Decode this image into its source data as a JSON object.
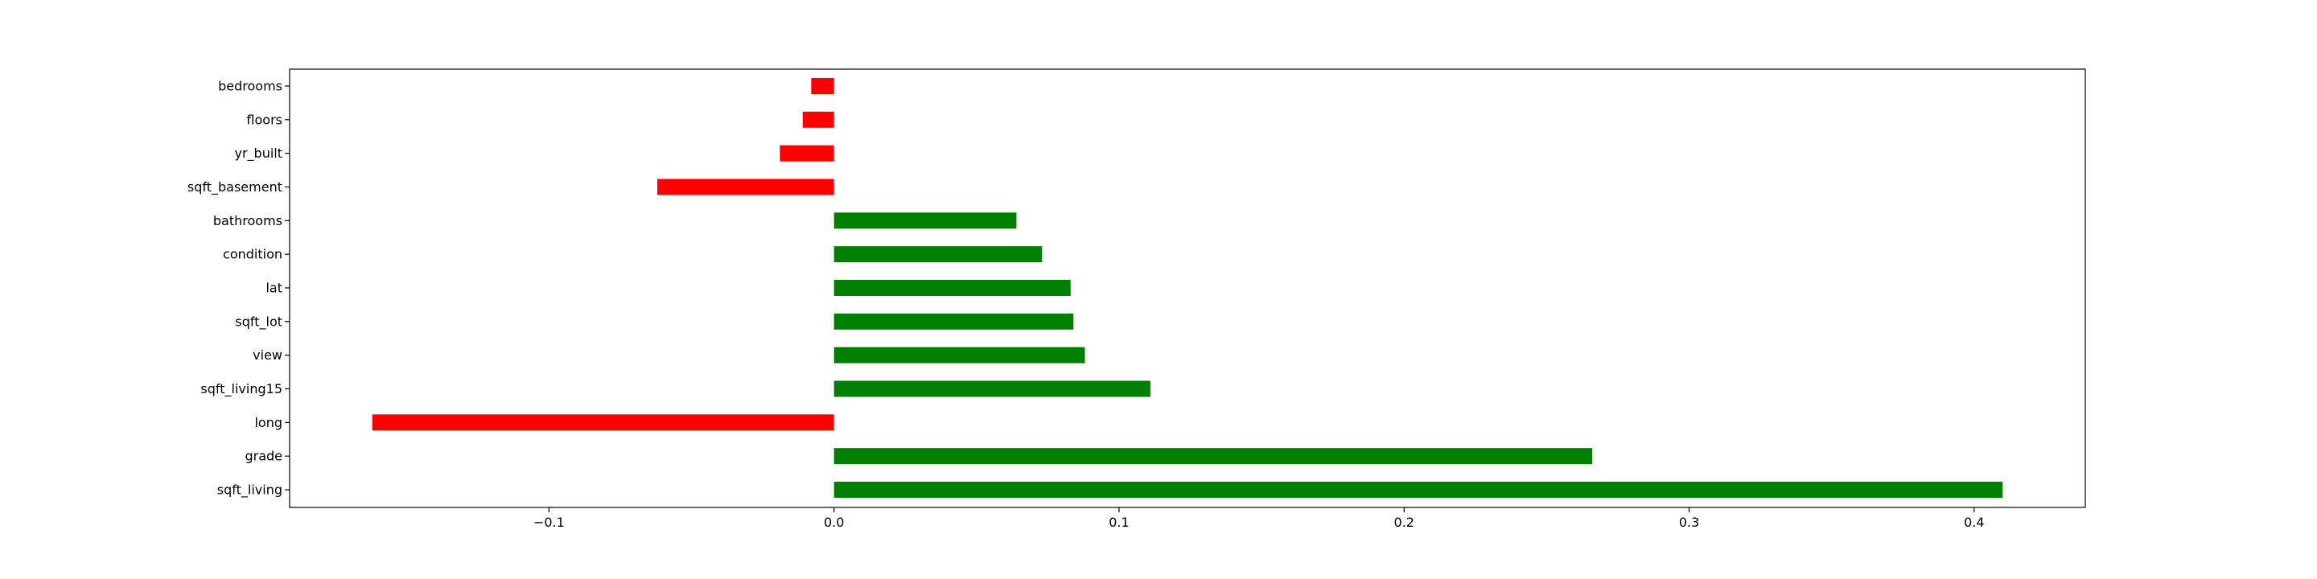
{
  "chart_data": {
    "type": "bar",
    "orientation": "horizontal",
    "categories": [
      "bedrooms",
      "floors",
      "yr_built",
      "sqft_basement",
      "bathrooms",
      "condition",
      "lat",
      "sqft_lot",
      "view",
      "sqft_living15",
      "long",
      "grade",
      "sqft_living"
    ],
    "values": [
      -0.008,
      -0.011,
      -0.019,
      -0.062,
      0.064,
      0.073,
      0.083,
      0.084,
      0.088,
      0.111,
      -0.162,
      0.266,
      0.41
    ],
    "title": "",
    "xlabel": "",
    "ylabel": "",
    "xlim": [
      -0.191,
      0.439
    ],
    "xticks": [
      -0.1,
      0.0,
      0.1,
      0.2,
      0.3,
      0.4
    ],
    "xtick_labels": [
      "−0.1",
      "0.0",
      "0.1",
      "0.2",
      "0.3",
      "0.4"
    ],
    "grid": false,
    "legend": false,
    "colors": {
      "positive": "#008000",
      "negative": "#ff0000",
      "axes": "#000000"
    }
  }
}
